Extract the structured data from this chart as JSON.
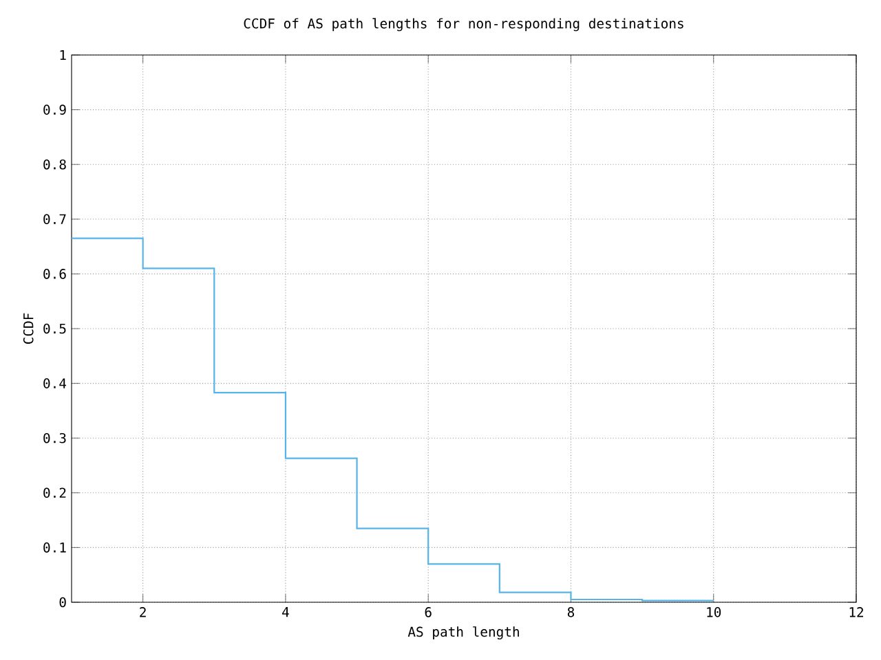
{
  "chart_data": {
    "type": "step",
    "title": "CCDF of AS path lengths for non-responding destinations",
    "xlabel": "AS path length",
    "ylabel": "CCDF",
    "x": [
      1,
      2,
      3,
      4,
      5,
      6,
      7,
      8,
      9,
      10
    ],
    "series": [
      {
        "color": "#56b4e9",
        "values": [
          0.665,
          0.61,
          0.383,
          0.263,
          0.135,
          0.07,
          0.018,
          0.005,
          0.003,
          0.003
        ]
      }
    ],
    "xlim": [
      1,
      12
    ],
    "xticks": [
      2,
      4,
      6,
      8,
      10,
      12
    ],
    "ylim": [
      0,
      1
    ],
    "yticks": [
      0,
      0.1,
      0.2,
      0.3,
      0.4,
      0.5,
      0.6,
      0.7,
      0.8,
      0.9,
      1
    ],
    "grid": true
  }
}
